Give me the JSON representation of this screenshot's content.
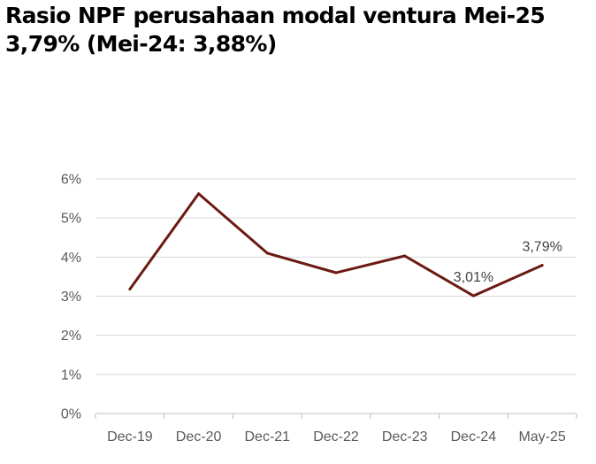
{
  "title": {
    "line1": "Rasio NPF perusahaan modal ventura Mei-25",
    "line2": "3,79% (Mei-24: 3,88%)"
  },
  "colors": {
    "line": "#6b1a12",
    "grid": "#d9d9d9",
    "axis": "#bfbfbf",
    "tick_text": "#595959"
  },
  "chart_data": {
    "type": "line",
    "title": "",
    "xlabel": "",
    "ylabel": "",
    "categories": [
      "Dec-19",
      "Dec-20",
      "Dec-21",
      "Dec-22",
      "Dec-23",
      "Dec-24",
      "May-25"
    ],
    "series": [
      {
        "values": [
          3.18,
          5.62,
          4.1,
          3.6,
          4.03,
          3.01,
          3.79
        ]
      }
    ],
    "yticks": [
      "0%",
      "1%",
      "2%",
      "3%",
      "4%",
      "5%",
      "6%"
    ],
    "ylim": [
      0,
      6
    ],
    "grid": true,
    "legend": "none",
    "data_labels": [
      {
        "index": 5,
        "text": "3,01%"
      },
      {
        "index": 6,
        "text": "3,79%"
      }
    ]
  }
}
